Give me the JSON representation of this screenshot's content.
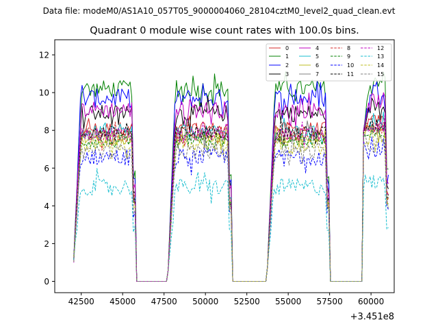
{
  "chart_data": {
    "type": "line",
    "suptitle": "Data file: modeM0/AS1A10_057T05_9000004060_28104cztM0_level2_quad_clean.evt",
    "title": "Quadrant 0 module wise count rates with 100.0s bins.",
    "xlabel": "",
    "ylabel": "",
    "x_offset_label": "+3.451e8",
    "xlim": [
      40900,
      61400
    ],
    "ylim": [
      -0.6,
      12.8
    ],
    "x_ticks": [
      42500,
      45000,
      47500,
      50000,
      52500,
      55000,
      57500,
      60000
    ],
    "x_tick_labels": [
      "42500",
      "45000",
      "47500",
      "50000",
      "52500",
      "55000",
      "57500",
      "60000"
    ],
    "y_ticks": [
      0,
      2,
      4,
      6,
      8,
      10,
      12
    ],
    "y_tick_labels": [
      "0",
      "2",
      "4",
      "6",
      "8",
      "10",
      "12"
    ],
    "grid": false,
    "legend_position": "top-right",
    "bin_seconds": 100,
    "x_units": "time offset in seconds",
    "segments": [
      {
        "start": 42050,
        "end": 45750,
        "ramp_start_value": 1.2,
        "level_scale": 1.0
      },
      {
        "start": 47750,
        "end": 51550,
        "ramp_start_value": 0.6,
        "level_scale": 1.0
      },
      {
        "start": 53750,
        "end": 57450,
        "ramp_start_value": 0.8,
        "level_scale": 1.0
      },
      {
        "start": 59550,
        "end": 61050,
        "ramp_start_value": 8.0,
        "level_scale": 1.05
      }
    ],
    "series": [
      {
        "name": "0",
        "color": "#d62728",
        "dash": "solid",
        "level": 8.1,
        "noise": 0.35
      },
      {
        "name": "1",
        "color": "#008000",
        "dash": "solid",
        "level": 10.2,
        "noise": 0.45
      },
      {
        "name": "2",
        "color": "#0000ff",
        "dash": "solid",
        "level": 9.7,
        "noise": 0.5
      },
      {
        "name": "3",
        "color": "#000000",
        "dash": "solid",
        "level": 8.9,
        "noise": 0.45
      },
      {
        "name": "4",
        "color": "#bf00bf",
        "dash": "solid",
        "level": 9.1,
        "noise": 0.45
      },
      {
        "name": "5",
        "color": "#17becf",
        "dash": "solid",
        "level": 7.9,
        "noise": 0.35
      },
      {
        "name": "6",
        "color": "#bcbd22",
        "dash": "solid",
        "level": 7.6,
        "noise": 0.35
      },
      {
        "name": "7",
        "color": "#7f7f7f",
        "dash": "solid",
        "level": 7.8,
        "noise": 0.35
      },
      {
        "name": "8",
        "color": "#d62728",
        "dash": "dashed",
        "level": 7.7,
        "noise": 0.35
      },
      {
        "name": "9",
        "color": "#008000",
        "dash": "dashed",
        "level": 7.4,
        "noise": 0.35
      },
      {
        "name": "10",
        "color": "#0000ff",
        "dash": "dashed",
        "level": 6.6,
        "noise": 0.45
      },
      {
        "name": "11",
        "color": "#000000",
        "dash": "dashed",
        "level": 7.9,
        "noise": 0.35
      },
      {
        "name": "12",
        "color": "#bf00bf",
        "dash": "dashed",
        "level": 7.8,
        "noise": 0.35
      },
      {
        "name": "13",
        "color": "#17becf",
        "dash": "dashed",
        "level": 5.0,
        "noise": 0.45
      },
      {
        "name": "14",
        "color": "#bcbd22",
        "dash": "dashed",
        "level": 7.2,
        "noise": 0.35
      },
      {
        "name": "15",
        "color": "#7f7f7f",
        "dash": "dashed",
        "level": 6.9,
        "noise": 0.4
      }
    ]
  }
}
